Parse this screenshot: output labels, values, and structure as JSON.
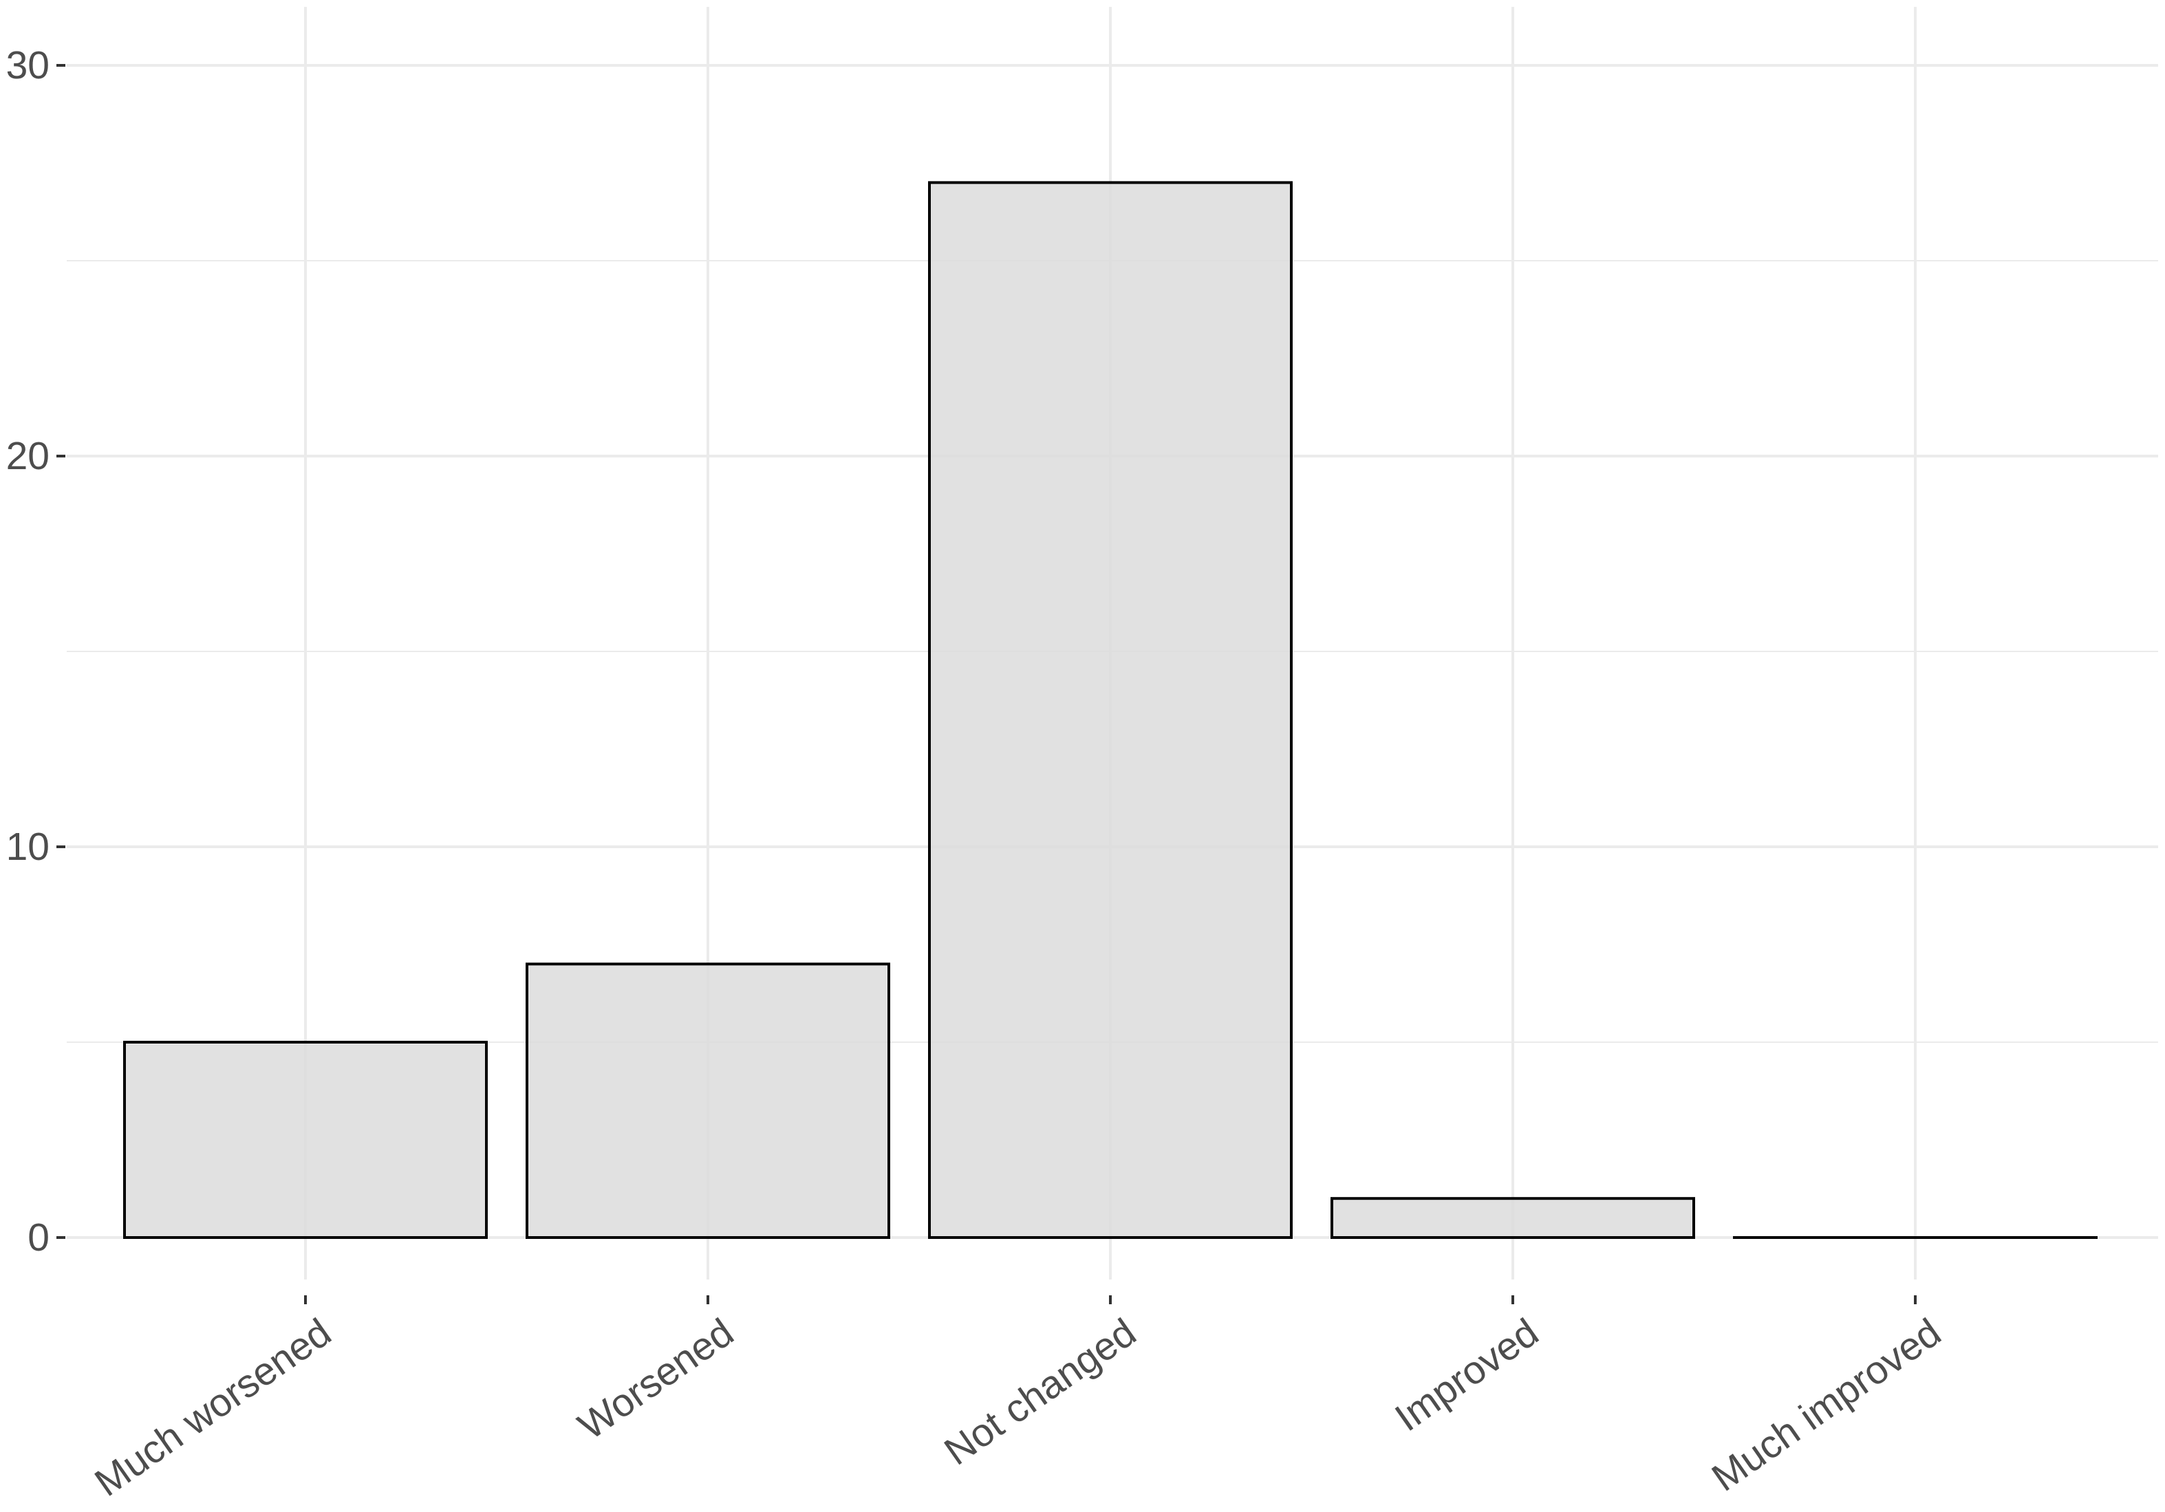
{
  "chart_data": {
    "type": "bar",
    "title": "",
    "xlabel": "",
    "ylabel": "",
    "categories": [
      "Much worsened",
      "Worsened",
      "Not changed",
      "Improved",
      "Much improved"
    ],
    "values": [
      5,
      7,
      27,
      1,
      0
    ],
    "ylim": [
      0,
      30
    ],
    "yticks": [
      0,
      10,
      20,
      30
    ],
    "ytick_labels": [
      "0",
      "10",
      "20",
      "30"
    ],
    "grid": true,
    "legend": "none",
    "colors": {
      "bar_fill": "#dcdcdc",
      "bar_stroke": "#000000",
      "grid": "#ebebeb",
      "tick_text": "#4d4d4d",
      "tick_mark": "#333333",
      "background": "#ffffff"
    }
  }
}
